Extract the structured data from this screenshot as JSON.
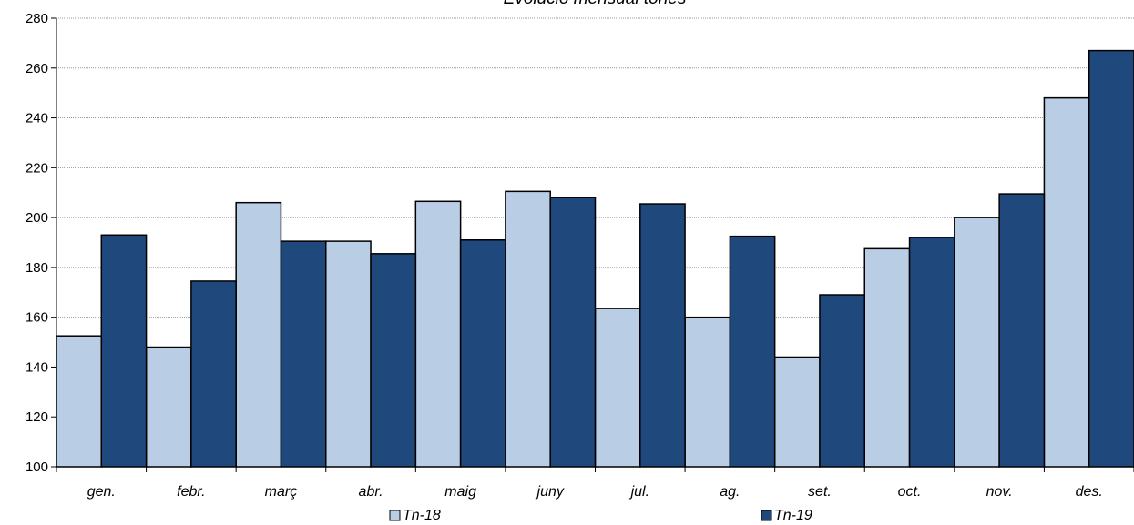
{
  "chart_data": {
    "type": "bar",
    "title": "Evolució mensual tones",
    "xlabel": "",
    "ylabel": "",
    "ylim": [
      100,
      280
    ],
    "yticks": [
      100,
      120,
      140,
      160,
      180,
      200,
      220,
      240,
      260,
      280
    ],
    "grid": true,
    "legend_position": "bottom",
    "categories": [
      "gen.",
      "febr.",
      "març",
      "abr.",
      "maig",
      "juny",
      "jul.",
      "ag.",
      "set.",
      "oct.",
      "nov.",
      "des."
    ],
    "series": [
      {
        "name": "Tn-18",
        "color": "#b9cde5",
        "values": [
          152.5,
          148,
          206,
          190.5,
          206.5,
          210.5,
          163.5,
          160,
          144,
          187.5,
          200,
          248
        ]
      },
      {
        "name": "Tn-19",
        "color": "#1f497d",
        "values": [
          193,
          174.5,
          190.5,
          185.5,
          191,
          208,
          205.5,
          192.5,
          169,
          192,
          209.5,
          267
        ]
      }
    ]
  }
}
